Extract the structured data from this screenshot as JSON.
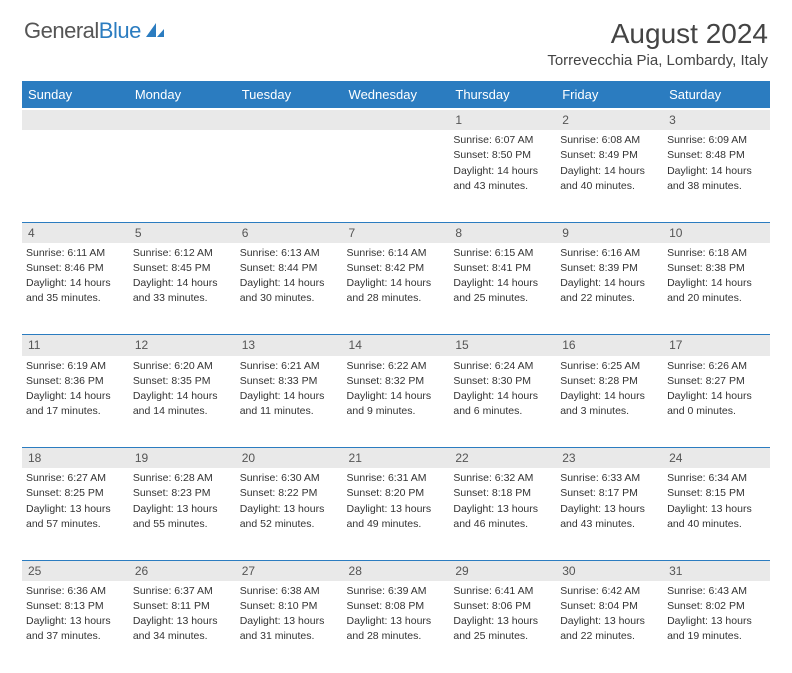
{
  "logo": {
    "text1": "General",
    "text2": "Blue"
  },
  "title": "August 2024",
  "location": "Torrevecchia Pia, Lombardy, Italy",
  "colors": {
    "header_bg": "#2b7cc0",
    "daynum_bg": "#e9e9e9",
    "row_border": "#2b7cc0",
    "text": "#333333"
  },
  "days_of_week": [
    "Sunday",
    "Monday",
    "Tuesday",
    "Wednesday",
    "Thursday",
    "Friday",
    "Saturday"
  ],
  "weeks": [
    [
      null,
      null,
      null,
      null,
      {
        "d": "1",
        "sr": "Sunrise: 6:07 AM",
        "ss": "Sunset: 8:50 PM",
        "dl1": "Daylight: 14 hours",
        "dl2": "and 43 minutes."
      },
      {
        "d": "2",
        "sr": "Sunrise: 6:08 AM",
        "ss": "Sunset: 8:49 PM",
        "dl1": "Daylight: 14 hours",
        "dl2": "and 40 minutes."
      },
      {
        "d": "3",
        "sr": "Sunrise: 6:09 AM",
        "ss": "Sunset: 8:48 PM",
        "dl1": "Daylight: 14 hours",
        "dl2": "and 38 minutes."
      }
    ],
    [
      {
        "d": "4",
        "sr": "Sunrise: 6:11 AM",
        "ss": "Sunset: 8:46 PM",
        "dl1": "Daylight: 14 hours",
        "dl2": "and 35 minutes."
      },
      {
        "d": "5",
        "sr": "Sunrise: 6:12 AM",
        "ss": "Sunset: 8:45 PM",
        "dl1": "Daylight: 14 hours",
        "dl2": "and 33 minutes."
      },
      {
        "d": "6",
        "sr": "Sunrise: 6:13 AM",
        "ss": "Sunset: 8:44 PM",
        "dl1": "Daylight: 14 hours",
        "dl2": "and 30 minutes."
      },
      {
        "d": "7",
        "sr": "Sunrise: 6:14 AM",
        "ss": "Sunset: 8:42 PM",
        "dl1": "Daylight: 14 hours",
        "dl2": "and 28 minutes."
      },
      {
        "d": "8",
        "sr": "Sunrise: 6:15 AM",
        "ss": "Sunset: 8:41 PM",
        "dl1": "Daylight: 14 hours",
        "dl2": "and 25 minutes."
      },
      {
        "d": "9",
        "sr": "Sunrise: 6:16 AM",
        "ss": "Sunset: 8:39 PM",
        "dl1": "Daylight: 14 hours",
        "dl2": "and 22 minutes."
      },
      {
        "d": "10",
        "sr": "Sunrise: 6:18 AM",
        "ss": "Sunset: 8:38 PM",
        "dl1": "Daylight: 14 hours",
        "dl2": "and 20 minutes."
      }
    ],
    [
      {
        "d": "11",
        "sr": "Sunrise: 6:19 AM",
        "ss": "Sunset: 8:36 PM",
        "dl1": "Daylight: 14 hours",
        "dl2": "and 17 minutes."
      },
      {
        "d": "12",
        "sr": "Sunrise: 6:20 AM",
        "ss": "Sunset: 8:35 PM",
        "dl1": "Daylight: 14 hours",
        "dl2": "and 14 minutes."
      },
      {
        "d": "13",
        "sr": "Sunrise: 6:21 AM",
        "ss": "Sunset: 8:33 PM",
        "dl1": "Daylight: 14 hours",
        "dl2": "and 11 minutes."
      },
      {
        "d": "14",
        "sr": "Sunrise: 6:22 AM",
        "ss": "Sunset: 8:32 PM",
        "dl1": "Daylight: 14 hours",
        "dl2": "and 9 minutes."
      },
      {
        "d": "15",
        "sr": "Sunrise: 6:24 AM",
        "ss": "Sunset: 8:30 PM",
        "dl1": "Daylight: 14 hours",
        "dl2": "and 6 minutes."
      },
      {
        "d": "16",
        "sr": "Sunrise: 6:25 AM",
        "ss": "Sunset: 8:28 PM",
        "dl1": "Daylight: 14 hours",
        "dl2": "and 3 minutes."
      },
      {
        "d": "17",
        "sr": "Sunrise: 6:26 AM",
        "ss": "Sunset: 8:27 PM",
        "dl1": "Daylight: 14 hours",
        "dl2": "and 0 minutes."
      }
    ],
    [
      {
        "d": "18",
        "sr": "Sunrise: 6:27 AM",
        "ss": "Sunset: 8:25 PM",
        "dl1": "Daylight: 13 hours",
        "dl2": "and 57 minutes."
      },
      {
        "d": "19",
        "sr": "Sunrise: 6:28 AM",
        "ss": "Sunset: 8:23 PM",
        "dl1": "Daylight: 13 hours",
        "dl2": "and 55 minutes."
      },
      {
        "d": "20",
        "sr": "Sunrise: 6:30 AM",
        "ss": "Sunset: 8:22 PM",
        "dl1": "Daylight: 13 hours",
        "dl2": "and 52 minutes."
      },
      {
        "d": "21",
        "sr": "Sunrise: 6:31 AM",
        "ss": "Sunset: 8:20 PM",
        "dl1": "Daylight: 13 hours",
        "dl2": "and 49 minutes."
      },
      {
        "d": "22",
        "sr": "Sunrise: 6:32 AM",
        "ss": "Sunset: 8:18 PM",
        "dl1": "Daylight: 13 hours",
        "dl2": "and 46 minutes."
      },
      {
        "d": "23",
        "sr": "Sunrise: 6:33 AM",
        "ss": "Sunset: 8:17 PM",
        "dl1": "Daylight: 13 hours",
        "dl2": "and 43 minutes."
      },
      {
        "d": "24",
        "sr": "Sunrise: 6:34 AM",
        "ss": "Sunset: 8:15 PM",
        "dl1": "Daylight: 13 hours",
        "dl2": "and 40 minutes."
      }
    ],
    [
      {
        "d": "25",
        "sr": "Sunrise: 6:36 AM",
        "ss": "Sunset: 8:13 PM",
        "dl1": "Daylight: 13 hours",
        "dl2": "and 37 minutes."
      },
      {
        "d": "26",
        "sr": "Sunrise: 6:37 AM",
        "ss": "Sunset: 8:11 PM",
        "dl1": "Daylight: 13 hours",
        "dl2": "and 34 minutes."
      },
      {
        "d": "27",
        "sr": "Sunrise: 6:38 AM",
        "ss": "Sunset: 8:10 PM",
        "dl1": "Daylight: 13 hours",
        "dl2": "and 31 minutes."
      },
      {
        "d": "28",
        "sr": "Sunrise: 6:39 AM",
        "ss": "Sunset: 8:08 PM",
        "dl1": "Daylight: 13 hours",
        "dl2": "and 28 minutes."
      },
      {
        "d": "29",
        "sr": "Sunrise: 6:41 AM",
        "ss": "Sunset: 8:06 PM",
        "dl1": "Daylight: 13 hours",
        "dl2": "and 25 minutes."
      },
      {
        "d": "30",
        "sr": "Sunrise: 6:42 AM",
        "ss": "Sunset: 8:04 PM",
        "dl1": "Daylight: 13 hours",
        "dl2": "and 22 minutes."
      },
      {
        "d": "31",
        "sr": "Sunrise: 6:43 AM",
        "ss": "Sunset: 8:02 PM",
        "dl1": "Daylight: 13 hours",
        "dl2": "and 19 minutes."
      }
    ]
  ]
}
